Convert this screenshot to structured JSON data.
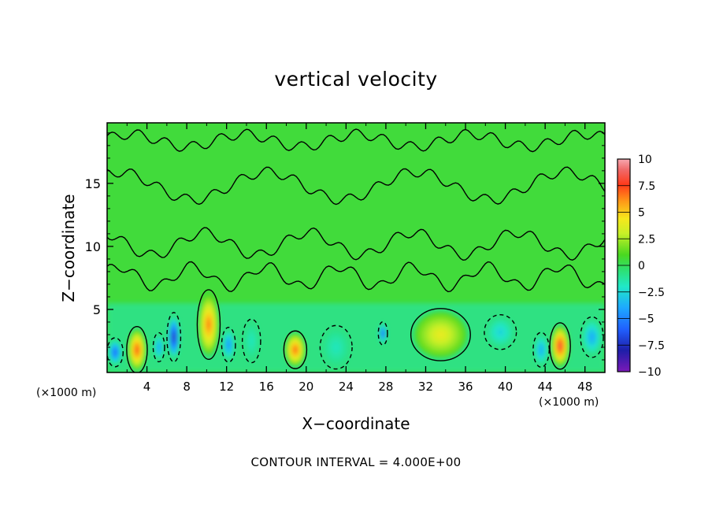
{
  "chart_data": {
    "type": "heatmap",
    "title": "vertical velocity",
    "xlabel": "X−coordinate",
    "ylabel": "Z−coordinate",
    "x_unit_left": "(×1000 m)",
    "x_unit_right": "(×1000 m)",
    "footer": "CONTOUR INTERVAL = 4.000E+00",
    "xlim": [
      0,
      50
    ],
    "ylim": [
      0,
      19.8
    ],
    "x_ticks": [
      4,
      8,
      12,
      16,
      20,
      24,
      28,
      32,
      36,
      40,
      44,
      48
    ],
    "y_ticks": [
      5,
      10,
      15
    ],
    "colorbar": {
      "range": [
        -10,
        10
      ],
      "tick_values": [
        10,
        7.5,
        5,
        2.5,
        0,
        -2.5,
        -5,
        -7.5,
        -10
      ],
      "tick_labels": [
        "10",
        "7.5",
        "5",
        "2.5",
        "0",
        "−2.5",
        "−5",
        "−7.5",
        "−10"
      ]
    },
    "background_value": 0.5,
    "features": [
      {
        "x": 3.0,
        "z": 1.8,
        "value": 8.5,
        "rx": 0.9,
        "rz": 1.6
      },
      {
        "x": 10.2,
        "z": 3.8,
        "value": 7.5,
        "rx": 1.0,
        "rz": 2.4
      },
      {
        "x": 18.9,
        "z": 1.8,
        "value": 8.0,
        "rx": 1.0,
        "rz": 1.3
      },
      {
        "x": 33.5,
        "z": 3.0,
        "value": 4.5,
        "rx": 2.6,
        "rz": 1.8
      },
      {
        "x": 45.5,
        "z": 2.1,
        "value": 9.5,
        "rx": 0.9,
        "rz": 1.6
      },
      {
        "x": 0.8,
        "z": 1.6,
        "value": -7.0,
        "rx": 0.7,
        "rz": 1.0
      },
      {
        "x": 6.7,
        "z": 2.8,
        "value": -9.5,
        "rx": 0.6,
        "rz": 1.7
      },
      {
        "x": 5.2,
        "z": 2.0,
        "value": -5.0,
        "rx": 0.5,
        "rz": 1.0
      },
      {
        "x": 12.2,
        "z": 2.2,
        "value": -5.5,
        "rx": 0.6,
        "rz": 1.2
      },
      {
        "x": 27.7,
        "z": 3.1,
        "value": -7.5,
        "rx": 0.4,
        "rz": 0.8
      },
      {
        "x": 43.6,
        "z": 1.8,
        "value": -4.5,
        "rx": 0.7,
        "rz": 1.2
      },
      {
        "x": 48.7,
        "z": 2.8,
        "value": -4.5,
        "rx": 1.0,
        "rz": 1.4
      },
      {
        "x": 39.5,
        "z": 3.2,
        "value": -3.0,
        "rx": 1.4,
        "rz": 1.2
      },
      {
        "x": 14.5,
        "z": 2.5,
        "value": -2.0,
        "rx": 0.8,
        "rz": 1.5
      },
      {
        "x": 23.0,
        "z": 2.0,
        "value": -2.0,
        "rx": 1.4,
        "rz": 1.5
      }
    ]
  }
}
